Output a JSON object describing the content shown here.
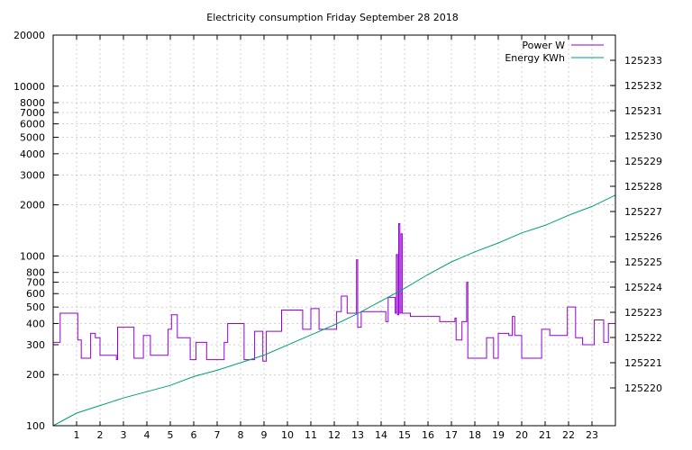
{
  "chart_data": {
    "type": "line",
    "title": "Electricity consumption Friday September 28 2018",
    "x_ticks": [
      1,
      2,
      3,
      4,
      5,
      6,
      7,
      8,
      9,
      10,
      11,
      12,
      13,
      14,
      15,
      16,
      17,
      18,
      19,
      20,
      21,
      22,
      23
    ],
    "xlim": [
      0,
      24
    ],
    "y_left": {
      "scale": "log",
      "range": [
        100,
        20000
      ],
      "tick_labels": [
        100,
        200,
        300,
        400,
        500,
        600,
        700,
        800,
        1000,
        2000,
        3000,
        4000,
        5000,
        6000,
        7000,
        8000,
        10000,
        20000
      ]
    },
    "y_right": {
      "scale": "linear",
      "range": [
        125218.5,
        125234
      ],
      "tick_labels": [
        125220,
        125221,
        125222,
        125223,
        125224,
        125225,
        125226,
        125227,
        125228,
        125229,
        125230,
        125231,
        125232,
        125233
      ]
    },
    "grid": true,
    "legend_position": "top-right",
    "series": [
      {
        "name": "Power W",
        "axis": "left",
        "color": "#9400d3",
        "step": true,
        "points": [
          [
            0,
            310
          ],
          [
            0.3,
            460
          ],
          [
            1.05,
            320
          ],
          [
            1.2,
            250
          ],
          [
            1.6,
            350
          ],
          [
            1.8,
            330
          ],
          [
            2.0,
            260
          ],
          [
            2.7,
            245
          ],
          [
            2.75,
            380
          ],
          [
            3.45,
            250
          ],
          [
            3.85,
            340
          ],
          [
            4.15,
            260
          ],
          [
            4.9,
            370
          ],
          [
            5.05,
            450
          ],
          [
            5.3,
            330
          ],
          [
            5.85,
            245
          ],
          [
            6.1,
            310
          ],
          [
            6.55,
            245
          ],
          [
            7.3,
            310
          ],
          [
            7.45,
            400
          ],
          [
            8.15,
            245
          ],
          [
            8.6,
            360
          ],
          [
            8.95,
            240
          ],
          [
            9.1,
            360
          ],
          [
            9.75,
            480
          ],
          [
            10.65,
            370
          ],
          [
            11.0,
            490
          ],
          [
            11.35,
            370
          ],
          [
            12.1,
            470
          ],
          [
            12.3,
            580
          ],
          [
            12.55,
            460
          ],
          [
            12.95,
            950
          ],
          [
            13.0,
            380
          ],
          [
            13.15,
            470
          ],
          [
            14.2,
            410
          ],
          [
            14.3,
            570
          ],
          [
            14.6,
            460
          ],
          [
            14.65,
            1020
          ],
          [
            14.7,
            450
          ],
          [
            14.75,
            1550
          ],
          [
            14.8,
            460
          ],
          [
            14.85,
            1350
          ],
          [
            14.9,
            460
          ],
          [
            15.25,
            440
          ],
          [
            16.5,
            410
          ],
          [
            17.15,
            430
          ],
          [
            17.2,
            320
          ],
          [
            17.45,
            410
          ],
          [
            17.65,
            700
          ],
          [
            17.7,
            250
          ],
          [
            18.5,
            330
          ],
          [
            18.8,
            250
          ],
          [
            19.0,
            350
          ],
          [
            19.45,
            340
          ],
          [
            19.6,
            440
          ],
          [
            19.7,
            340
          ],
          [
            20.0,
            250
          ],
          [
            20.85,
            370
          ],
          [
            21.2,
            340
          ],
          [
            21.95,
            500
          ],
          [
            22.3,
            330
          ],
          [
            22.6,
            300
          ],
          [
            23.1,
            420
          ],
          [
            23.5,
            310
          ],
          [
            23.7,
            400
          ],
          [
            24.0,
            400
          ]
        ]
      },
      {
        "name": "Energy KWh",
        "axis": "right",
        "color": "#009e73",
        "points": [
          [
            0,
            125218.5
          ],
          [
            1,
            125219.0
          ],
          [
            2,
            125219.3
          ],
          [
            3,
            125219.6
          ],
          [
            4,
            125219.85
          ],
          [
            5,
            125220.1
          ],
          [
            6,
            125220.45
          ],
          [
            7,
            125220.7
          ],
          [
            8,
            125221.0
          ],
          [
            9,
            125221.3
          ],
          [
            10,
            125221.7
          ],
          [
            11,
            125222.1
          ],
          [
            12,
            125222.5
          ],
          [
            13,
            125222.95
          ],
          [
            14,
            125223.45
          ],
          [
            15,
            125223.95
          ],
          [
            16,
            125224.5
          ],
          [
            17,
            125225.0
          ],
          [
            18,
            125225.4
          ],
          [
            19,
            125225.75
          ],
          [
            20,
            125226.15
          ],
          [
            21,
            125226.45
          ],
          [
            22,
            125226.85
          ],
          [
            23,
            125227.2
          ],
          [
            24,
            125227.65
          ]
        ]
      }
    ]
  }
}
